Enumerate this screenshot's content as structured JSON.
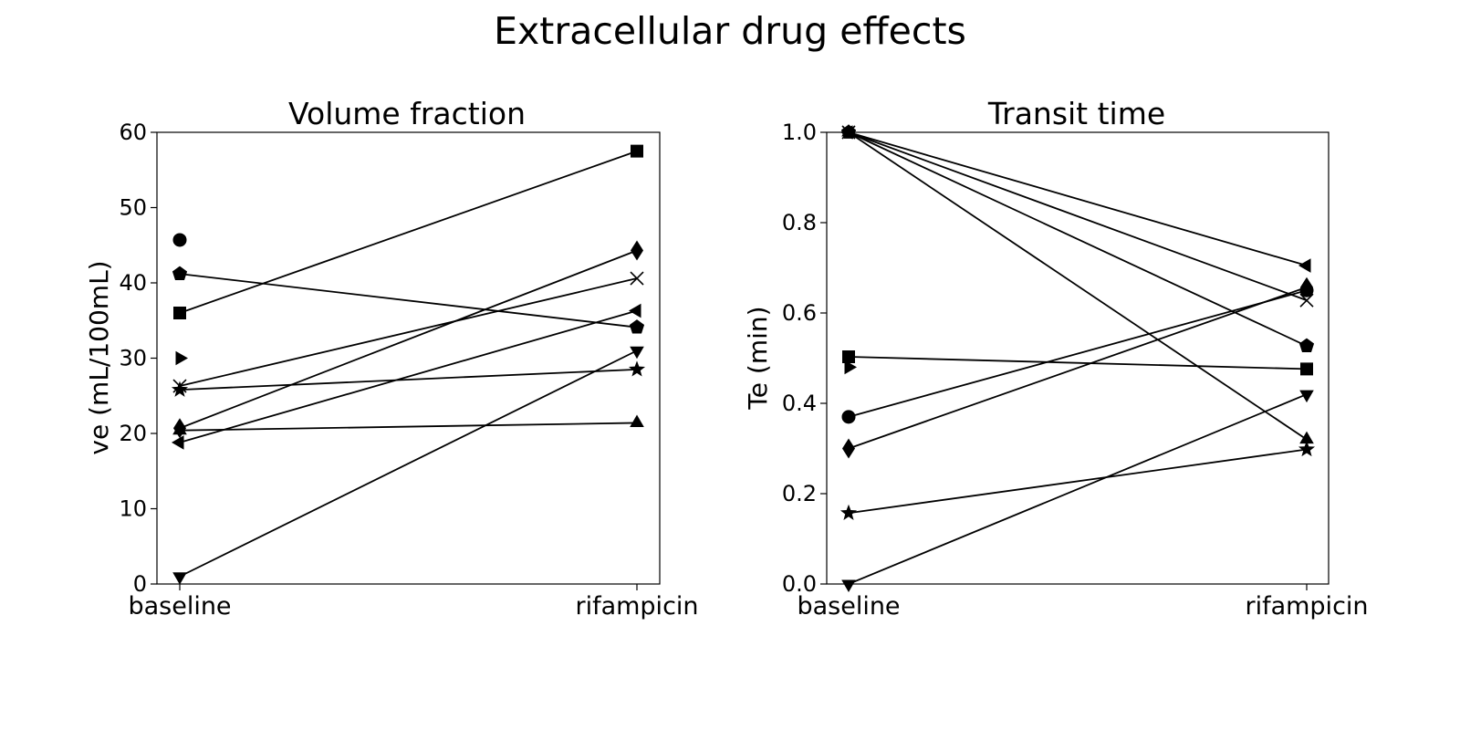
{
  "figure": {
    "suptitle": "Extracellular drug effects"
  },
  "chart_data": [
    {
      "type": "line",
      "title": "Volume fraction",
      "xlabel": "",
      "ylabel": "ve (mL/100mL)",
      "categories": [
        "baseline",
        "rifampicin"
      ],
      "ylim": [
        0,
        60
      ],
      "yticks": [
        0,
        10,
        20,
        30,
        40,
        50,
        60
      ],
      "ytick_labels": [
        "0",
        "10",
        "20",
        "30",
        "40",
        "50",
        "60"
      ],
      "grid": false,
      "legend": "none",
      "series": [
        {
          "marker": "circle",
          "values": [
            45.7,
            null
          ]
        },
        {
          "marker": "pentagon",
          "values": [
            41.2,
            34.1
          ]
        },
        {
          "marker": "square",
          "values": [
            36.0,
            57.5
          ]
        },
        {
          "marker": "triangle-right",
          "values": [
            30.0,
            null
          ]
        },
        {
          "marker": "x",
          "values": [
            26.3,
            40.6
          ]
        },
        {
          "marker": "star",
          "values": [
            25.8,
            28.5
          ]
        },
        {
          "marker": "diamond",
          "values": [
            20.7,
            44.3
          ]
        },
        {
          "marker": "triangle-up",
          "values": [
            20.4,
            21.4
          ]
        },
        {
          "marker": "triangle-left",
          "values": [
            18.8,
            36.3
          ]
        },
        {
          "marker": "triangle-down",
          "values": [
            1.0,
            31.0
          ]
        }
      ]
    },
    {
      "type": "line",
      "title": "Transit time",
      "xlabel": "",
      "ylabel": "Te (min)",
      "categories": [
        "baseline",
        "rifampicin"
      ],
      "ylim": [
        0,
        1
      ],
      "yticks": [
        0,
        0.2,
        0.4,
        0.6,
        0.8,
        1.0
      ],
      "ytick_labels": [
        "0.0",
        "0.2",
        "0.4",
        "0.6",
        "0.8",
        "1.0"
      ],
      "grid": false,
      "legend": "none",
      "series": [
        {
          "marker": "triangle-left",
          "values": [
            1.0,
            0.705
          ]
        },
        {
          "marker": "pentagon",
          "values": [
            1.0,
            0.527
          ]
        },
        {
          "marker": "x",
          "values": [
            1.0,
            0.628
          ]
        },
        {
          "marker": "triangle-up",
          "values": [
            1.0,
            0.32
          ]
        },
        {
          "marker": "square",
          "values": [
            0.503,
            0.476
          ]
        },
        {
          "marker": "triangle-right",
          "values": [
            0.48,
            null
          ]
        },
        {
          "marker": "circle",
          "values": [
            0.37,
            0.65
          ]
        },
        {
          "marker": "diamond",
          "values": [
            0.3,
            0.657
          ]
        },
        {
          "marker": "star",
          "values": [
            0.157,
            0.298
          ]
        },
        {
          "marker": "triangle-down",
          "values": [
            0.0,
            0.42
          ]
        }
      ]
    }
  ]
}
